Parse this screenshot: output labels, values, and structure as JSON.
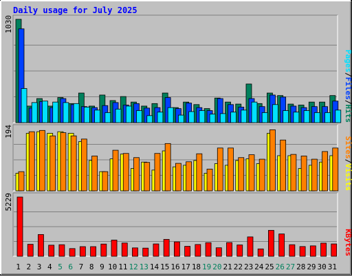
{
  "chart_data": {
    "type": "bar",
    "title": "Daily usage for July 2025",
    "categories": [
      "1",
      "2",
      "3",
      "4",
      "5",
      "6",
      "7",
      "8",
      "9",
      "10",
      "11",
      "12",
      "13",
      "14",
      "15",
      "16",
      "17",
      "18",
      "19",
      "20",
      "21",
      "22",
      "23",
      "24",
      "25",
      "26",
      "27",
      "28",
      "29",
      "30",
      "31"
    ],
    "weekend_days": [
      "5",
      "6",
      "12",
      "13",
      "19",
      "20",
      "26",
      "27"
    ],
    "colors": {
      "hits": "#00805c",
      "files": "#0040ff",
      "pages": "#00e0ff",
      "visits": "#ffff00",
      "sites": "#ff8000",
      "kbytes": "#ff0000",
      "weekend_label": "#00805c",
      "weekday_label": "#000000",
      "title": "#0000ff",
      "panel": "#c0c0c0"
    },
    "panels": [
      {
        "id": "hits-files-pages",
        "ymax_label": "1030",
        "ylim": [
          0,
          1030
        ],
        "legend": [
          {
            "label": "Pages",
            "color": "#00e0ff"
          },
          {
            "label": "Files",
            "color": "#0040ff"
          },
          {
            "label": "Hits",
            "color": "#00805c"
          }
        ],
        "legend_separator": "/",
        "series": [
          {
            "name": "Hits",
            "color": "#00805c",
            "values": [
              1030,
              165,
              240,
              165,
              250,
              190,
              295,
              165,
              275,
              220,
              260,
              205,
              165,
              190,
              295,
              150,
              205,
              180,
              140,
              245,
              205,
              185,
              385,
              190,
              295,
              270,
              185,
              175,
              205,
              205,
              270
            ]
          },
          {
            "name": "Files",
            "color": "#0040ff",
            "values": [
              935,
              145,
              210,
              150,
              240,
              180,
              160,
              150,
              170,
              200,
              175,
              190,
              145,
              150,
              250,
              140,
              195,
              150,
              120,
              240,
              180,
              155,
              240,
              160,
              275,
              255,
              165,
              150,
              160,
              160,
              215
            ]
          },
          {
            "name": "Pages",
            "color": "#00e0ff",
            "values": [
              340,
              200,
              215,
              205,
              200,
              190,
              155,
              125,
              100,
              135,
              165,
              120,
              70,
              105,
              150,
              75,
              110,
              120,
              85,
              90,
              105,
              125,
              205,
              100,
              180,
              120,
              105,
              120,
              100,
              100,
              125
            ]
          }
        ]
      },
      {
        "id": "visits-sites",
        "ymax_label": "194",
        "ylim": [
          0,
          194
        ],
        "legend": [
          {
            "label": "Sites",
            "color": "#ff8000"
          },
          {
            "label": "Visits",
            "color": "#ffff00"
          }
        ],
        "legend_separator": "/",
        "series": [
          {
            "name": "Visits",
            "color": "#ffff00",
            "values": [
              55,
              180,
              185,
              180,
              185,
              180,
              154,
              95,
              60,
              100,
              115,
              70,
              90,
              65,
              125,
              75,
              80,
              95,
              55,
              85,
              80,
              95,
              100,
              85,
              180,
              110,
              110,
              70,
              80,
              90,
              110
            ]
          },
          {
            "name": "Sites",
            "color": "#ff8000",
            "values": [
              60,
              185,
              189,
              172,
              182,
              172,
              162,
              109,
              60,
              127,
              117,
              104,
              89,
              117,
              148,
              86,
              91,
              116,
              68,
              134,
              134,
              104,
              113,
              99,
              191,
              159,
              114,
              109,
              99,
              123,
              134
            ]
          }
        ]
      },
      {
        "id": "kbytes",
        "ymax_label": "5229",
        "ylim": [
          0,
          5229
        ],
        "legend": [
          {
            "label": "KBytes",
            "color": "#ff0000"
          }
        ],
        "series": [
          {
            "name": "KBytes",
            "color": "#ff0000",
            "values": [
              5229,
              1060,
              1920,
              980,
              1020,
              680,
              850,
              850,
              1080,
              1430,
              1170,
              740,
              720,
              1090,
              1490,
              1270,
              880,
              1040,
              1200,
              750,
              1210,
              1000,
              1710,
              650,
              2290,
              1970,
              1020,
              860,
              920,
              1160,
              1090
            ]
          }
        ]
      }
    ]
  }
}
